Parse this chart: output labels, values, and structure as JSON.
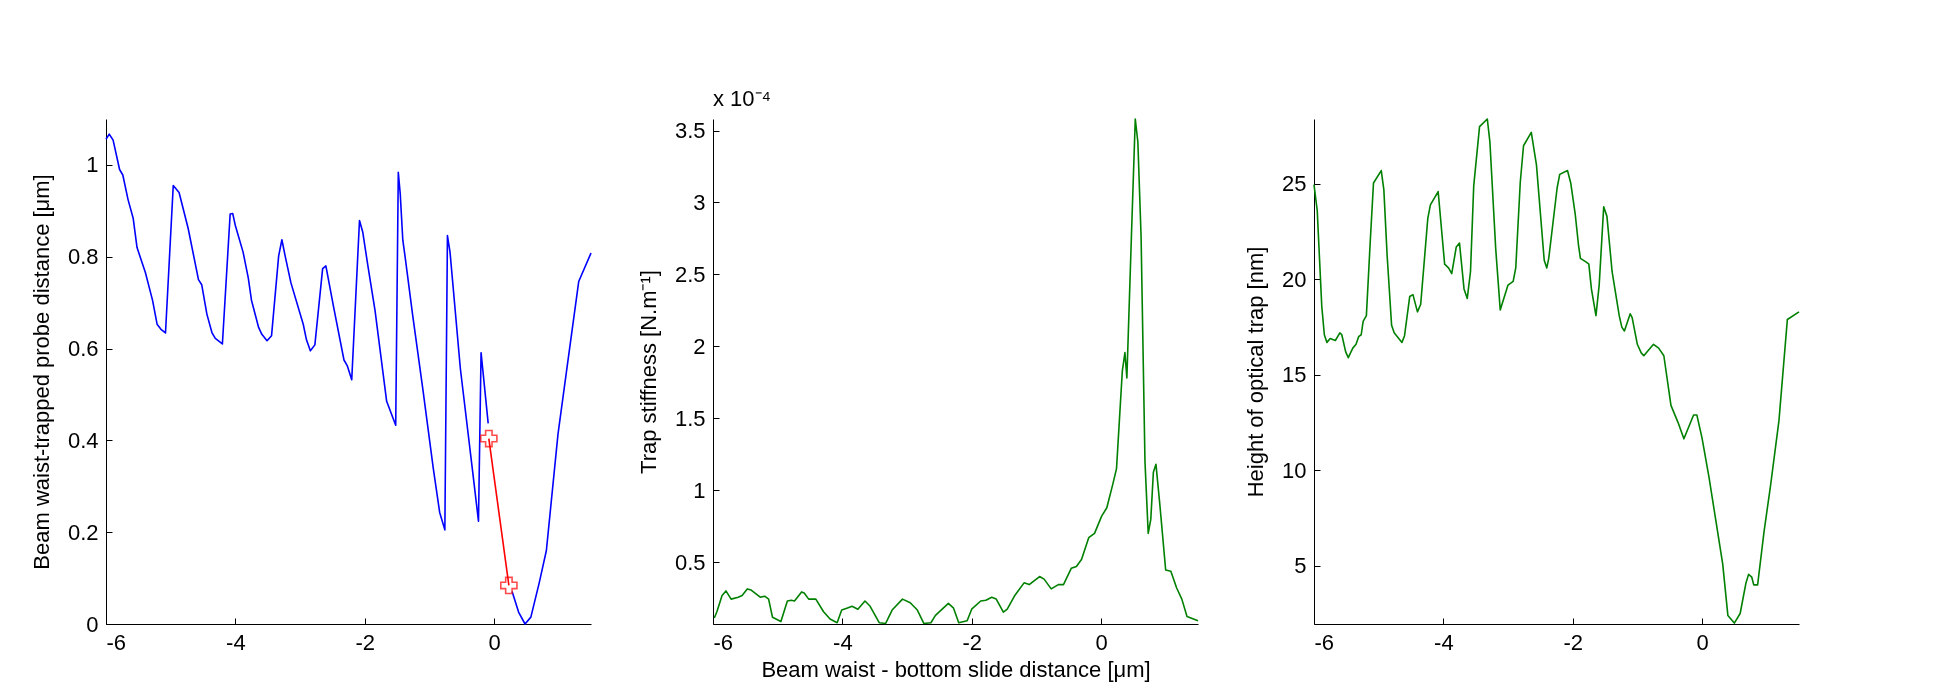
{
  "chart_data": [
    {
      "type": "line",
      "ylabel": "Beam waist-trapped probe distance [μm]",
      "xlim": [
        -6,
        1.5
      ],
      "ylim": [
        0,
        1.1
      ],
      "xticks": [
        -6,
        -4,
        -2,
        0
      ],
      "yticks": [
        0,
        0.2,
        0.4,
        0.6,
        0.8,
        1
      ],
      "series": [
        {
          "color": "#0000ff",
          "x": [
            -6,
            -5.95,
            -5.89,
            -5.79,
            -5.74,
            -5.66,
            -5.58,
            -5.52,
            -5.39,
            -5.28,
            -5.21,
            -5.15,
            -5.08,
            -4.96,
            -4.87,
            -4.73,
            -4.57,
            -4.52,
            -4.44,
            -4.36,
            -4.31,
            -4.2,
            -4.08,
            -4.04,
            -4,
            -3.88,
            -3.8,
            -3.75,
            -3.64,
            -3.59,
            -3.51,
            -3.44,
            -3.33,
            -3.28,
            -3.23,
            -3.14,
            -2.95,
            -2.9,
            -2.84,
            -2.77,
            -2.65,
            -2.6,
            -2.48,
            -2.32,
            -2.27,
            -2.2,
            -2.08,
            -2.03,
            -1.95,
            -1.84,
            -1.66,
            -1.52,
            -1.48,
            -1.45,
            -1.41,
            -1.37,
            -1.26,
            -1.1,
            -0.94,
            -0.84,
            -0.76,
            -0.72,
            -0.68,
            -0.52,
            -0.33,
            -0.24,
            -0.2,
            -0.09,
            0.06,
            0.28,
            0.38,
            0.48,
            0.57,
            0.7,
            0.81,
            0.99,
            1.12,
            1.31,
            1.5
          ],
          "values": [
            1.056,
            1.067,
            1.054,
            0.99,
            0.978,
            0.925,
            0.884,
            0.82,
            0.765,
            0.705,
            0.653,
            0.642,
            0.634,
            0.955,
            0.94,
            0.862,
            0.75,
            0.739,
            0.675,
            0.634,
            0.622,
            0.61,
            0.893,
            0.894,
            0.868,
            0.81,
            0.754,
            0.705,
            0.646,
            0.631,
            0.617,
            0.628,
            0.802,
            0.837,
            0.802,
            0.743,
            0.653,
            0.619,
            0.595,
            0.608,
            0.774,
            0.78,
            0.69,
            0.575,
            0.563,
            0.532,
            0.879,
            0.854,
            0.78,
            0.683,
            0.485,
            0.433,
            0.984,
            0.937,
            0.836,
            0.795,
            0.675,
            0.511,
            0.34,
            0.243,
            0.205,
            0.846,
            0.81,
            0.556,
            0.332,
            0.224,
            0.591,
            0.437,
            null,
            0.071,
            0.026,
            0,
            0.015,
            0.09,
            0.16,
            0.414,
            0.549,
            0.746,
            0.808
          ]
        },
        {
          "color": "#ff0000",
          "marker": "cross",
          "x": [
            -0.08,
            0.23
          ],
          "values": [
            0.404,
            0.084
          ]
        }
      ]
    },
    {
      "type": "line",
      "xlabel": "Beam waist - bottom slide distance [μm]",
      "ylabel": "Trap stiffness [N.m⁻¹]",
      "annotations": [
        "x 10⁻⁴"
      ],
      "xlim": [
        -6,
        1.5
      ],
      "ylim": [
        0.07,
        3.58
      ],
      "xticks": [
        -6,
        -4,
        -2,
        0
      ],
      "yticks": [
        0.5,
        1,
        1.5,
        2,
        2.5,
        3,
        3.5
      ],
      "series": [
        {
          "color": "#008000",
          "x": [
            -5.98,
            -5.94,
            -5.86,
            -5.8,
            -5.72,
            -5.61,
            -5.55,
            -5.47,
            -5.41,
            -5.27,
            -5.2,
            -5.14,
            -5.08,
            -4.95,
            -4.85,
            -4.79,
            -4.74,
            -4.63,
            -4.59,
            -4.52,
            -4.41,
            -4.29,
            -4.19,
            -4.08,
            -4.01,
            -3.93,
            -3.85,
            -3.76,
            -3.65,
            -3.57,
            -3.43,
            -3.33,
            -3.23,
            -3.07,
            -2.95,
            -2.84,
            -2.74,
            -2.63,
            -2.56,
            -2.36,
            -2.28,
            -2.2,
            -2.07,
            -2,
            -1.86,
            -1.78,
            -1.69,
            -1.62,
            -1.51,
            -1.45,
            -1.33,
            -1.19,
            -1.11,
            -0.95,
            -0.88,
            -0.77,
            -0.66,
            -0.58,
            -0.46,
            -0.38,
            -0.3,
            -0.19,
            -0.1,
            0.01,
            0.09,
            0.18,
            0.24,
            0.28,
            0.33,
            0.37,
            0.4,
            0.47,
            0.53,
            0.57,
            0.62,
            0.68,
            0.73,
            0.77,
            0.81,
            0.85,
            0.91,
            1,
            1.08,
            1.17,
            1.25,
            1.33,
            1.5
          ],
          "values": [
            0.112,
            0.155,
            0.268,
            0.3,
            0.243,
            0.256,
            0.268,
            0.314,
            0.306,
            0.256,
            0.263,
            0.243,
            0.117,
            0.087,
            0.23,
            0.235,
            0.23,
            0.293,
            0.285,
            0.243,
            0.243,
            0.155,
            0.105,
            0.079,
            0.167,
            0.18,
            0.193,
            0.173,
            0.23,
            0.193,
            0.079,
            0.074,
            0.167,
            0.243,
            0.218,
            0.167,
            0.074,
            0.079,
            0.13,
            0.213,
            0.18,
            0.079,
            0.092,
            0.173,
            0.23,
            0.235,
            0.256,
            0.243,
            0.152,
            0.173,
            0.27,
            0.356,
            0.344,
            0.4,
            0.382,
            0.314,
            0.344,
            0.344,
            0.457,
            0.47,
            0.52,
            0.67,
            0.7,
            0.82,
            0.878,
            1.037,
            1.15,
            1.452,
            1.83,
            1.956,
            1.78,
            2.76,
            3.58,
            3.42,
            2.76,
            1.2,
            0.7,
            0.797,
            1.125,
            1.18,
            0.9,
            0.445,
            0.437,
            0.32,
            0.243,
            0.122,
            0.092
          ]
        }
      ]
    },
    {
      "type": "line",
      "ylabel": "Height of optical trap [nm]",
      "xlim": [
        -6,
        1.5
      ],
      "ylim": [
        1.95,
        28.4
      ],
      "xticks": [
        -6,
        -4,
        -2,
        0
      ],
      "yticks": [
        5,
        10,
        15,
        20,
        25
      ],
      "series": [
        {
          "color": "#008000",
          "x": [
            -6,
            -5.95,
            -5.88,
            -5.84,
            -5.8,
            -5.75,
            -5.67,
            -5.6,
            -5.57,
            -5.51,
            -5.47,
            -5.4,
            -5.35,
            -5.31,
            -5.27,
            -5.24,
            -5.19,
            -5.13,
            -5.08,
            -4.96,
            -4.92,
            -4.87,
            -4.8,
            -4.76,
            -4.64,
            -4.6,
            -4.52,
            -4.47,
            -4.4,
            -4.35,
            -4.24,
            -4.2,
            -4.08,
            -3.98,
            -3.92,
            -3.87,
            -3.8,
            -3.75,
            -3.68,
            -3.63,
            -3.58,
            -3.53,
            -3.44,
            -3.32,
            -3.28,
            -3.19,
            -3.12,
            -3,
            -2.92,
            -2.88,
            -2.81,
            -2.76,
            -2.64,
            -2.56,
            -2.44,
            -2.4,
            -2.37,
            -2.24,
            -2.2,
            -2.08,
            -2.03,
            -1.96,
            -1.91,
            -1.88,
            -1.79,
            -1.75,
            -1.71,
            -1.64,
            -1.59,
            -1.52,
            -1.47,
            -1.39,
            -1.28,
            -1.24,
            -1.2,
            -1.11,
            -1.08,
            -1,
            -0.94,
            -0.9,
            -0.75,
            -0.67,
            -0.59,
            -0.48,
            -0.37,
            -0.28,
            -0.13,
            -0.08,
            0,
            0.11,
            0.32,
            0.4,
            0.5,
            0.59,
            0.68,
            0.72,
            0.77,
            0.8,
            0.86,
            0.96,
            1.06,
            1.19,
            1.32,
            1.5
          ],
          "values": [
            24.96,
            23.6,
            18.6,
            17.1,
            16.7,
            16.9,
            16.8,
            17.2,
            17.1,
            16.2,
            15.9,
            16.4,
            16.6,
            17,
            17.1,
            17.8,
            18.1,
            22,
            25.05,
            25.7,
            24.7,
            21.3,
            17.6,
            17.2,
            16.7,
            17.05,
            19.1,
            19.2,
            18.3,
            18.7,
            23.2,
            23.9,
            24.6,
            20.8,
            20.6,
            20.3,
            21.7,
            21.9,
            19.5,
            19,
            20.4,
            24.9,
            28,
            28.4,
            27.2,
            21.6,
            18.4,
            19.7,
            19.9,
            20.6,
            25.1,
            27,
            27.7,
            26,
            21,
            20.6,
            21.1,
            24.8,
            25.5,
            25.7,
            25.05,
            23.4,
            21.8,
            21.1,
            20.9,
            20.8,
            19.5,
            18.1,
            19.7,
            23.8,
            23.3,
            20.4,
            18.1,
            17.5,
            17.3,
            18.2,
            18,
            16.6,
            16.15,
            16,
            16.6,
            16.4,
            16,
            13.4,
            12.5,
            11.65,
            12.9,
            12.9,
            11.7,
            9.6,
            5.1,
            2.4,
            2,
            2.5,
            4.1,
            4.55,
            4.4,
            4,
            4,
            6.8,
            9.2,
            12.6,
            17.9,
            18.3
          ]
        }
      ]
    }
  ]
}
